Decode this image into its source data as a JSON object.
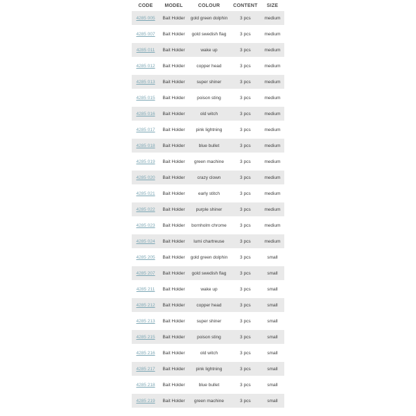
{
  "colors": {
    "stripe": "#e9e9e9",
    "link": "#7ba6b4",
    "header_text": "#4d4d4d",
    "body_text": "#3d3d3d",
    "page_bg": "#ffffff"
  },
  "table": {
    "columns": [
      {
        "key": "code",
        "label": "CODE"
      },
      {
        "key": "model",
        "label": "MODEL"
      },
      {
        "key": "colour",
        "label": "COLOUR"
      },
      {
        "key": "content",
        "label": "CONTENT"
      },
      {
        "key": "size",
        "label": "SIZE"
      }
    ],
    "rows": [
      {
        "code": "4285 005",
        "model": "Bait Holder",
        "colour": "gold green dolphin",
        "content": "3 pcs",
        "size": "medium"
      },
      {
        "code": "4285 007",
        "model": "Bait Holder",
        "colour": "gold swedish flag",
        "content": "3 pcs",
        "size": "medium"
      },
      {
        "code": "4285 011",
        "model": "Bait Holder",
        "colour": "wake up",
        "content": "3 pcs",
        "size": "medium"
      },
      {
        "code": "4285 012",
        "model": "Bait Holder",
        "colour": "copper head",
        "content": "3 pcs",
        "size": "medium"
      },
      {
        "code": "4285 013",
        "model": "Bait Holder",
        "colour": "super shiner",
        "content": "3 pcs",
        "size": "medium"
      },
      {
        "code": "4285 015",
        "model": "Bait Holder",
        "colour": "poison sting",
        "content": "3 pcs",
        "size": "medium"
      },
      {
        "code": "4285 016",
        "model": "Bait Holder",
        "colour": "old witch",
        "content": "3 pcs",
        "size": "medium"
      },
      {
        "code": "4285 017",
        "model": "Bait Holder",
        "colour": "pink lightning",
        "content": "3 pcs",
        "size": "medium"
      },
      {
        "code": "4285 018",
        "model": "Bait Holder",
        "colour": "blue bullet",
        "content": "3 pcs",
        "size": "medium"
      },
      {
        "code": "4285 019",
        "model": "Bait Holder",
        "colour": "green machine",
        "content": "3 pcs",
        "size": "medium"
      },
      {
        "code": "4285 020",
        "model": "Bait Holder",
        "colour": "crazy clown",
        "content": "3 pcs",
        "size": "medium"
      },
      {
        "code": "4285 021",
        "model": "Bait Holder",
        "colour": "early stitch",
        "content": "3 pcs",
        "size": "medium"
      },
      {
        "code": "4285 022",
        "model": "Bait Holder",
        "colour": "purple shiner",
        "content": "3 pcs",
        "size": "medium"
      },
      {
        "code": "4285 023",
        "model": "Bait Holder",
        "colour": "bornholm chrome",
        "content": "3 pcs",
        "size": "medium"
      },
      {
        "code": "4285 024",
        "model": "Bait Holder",
        "colour": "lumi chartreuse",
        "content": "3 pcs",
        "size": "medium"
      },
      {
        "code": "4285 205",
        "model": "Bait Holder",
        "colour": "gold green dolphin",
        "content": "3 pcs",
        "size": "small"
      },
      {
        "code": "4285 207",
        "model": "Bait Holder",
        "colour": "gold swedish flag",
        "content": "3 pcs",
        "size": "small"
      },
      {
        "code": "4285 211",
        "model": "Bait Holder",
        "colour": "wake up",
        "content": "3 pcs",
        "size": "small"
      },
      {
        "code": "4285 212",
        "model": "Bait Holder",
        "colour": "copper head",
        "content": "3 pcs",
        "size": "small"
      },
      {
        "code": "4285 213",
        "model": "Bait Holder",
        "colour": "super shiner",
        "content": "3 pcs",
        "size": "small"
      },
      {
        "code": "4285 215",
        "model": "Bait Holder",
        "colour": "poison sting",
        "content": "3 pcs",
        "size": "small"
      },
      {
        "code": "4285 216",
        "model": "Bait Holder",
        "colour": "old witch",
        "content": "3 pcs",
        "size": "small"
      },
      {
        "code": "4285 217",
        "model": "Bait Holder",
        "colour": "pink lightning",
        "content": "3 pcs",
        "size": "small"
      },
      {
        "code": "4285 218",
        "model": "Bait Holder",
        "colour": "blue bullet",
        "content": "3 pcs",
        "size": "small"
      },
      {
        "code": "4285 219",
        "model": "Bait Holder",
        "colour": "green machine",
        "content": "3 pcs",
        "size": "small"
      }
    ]
  }
}
